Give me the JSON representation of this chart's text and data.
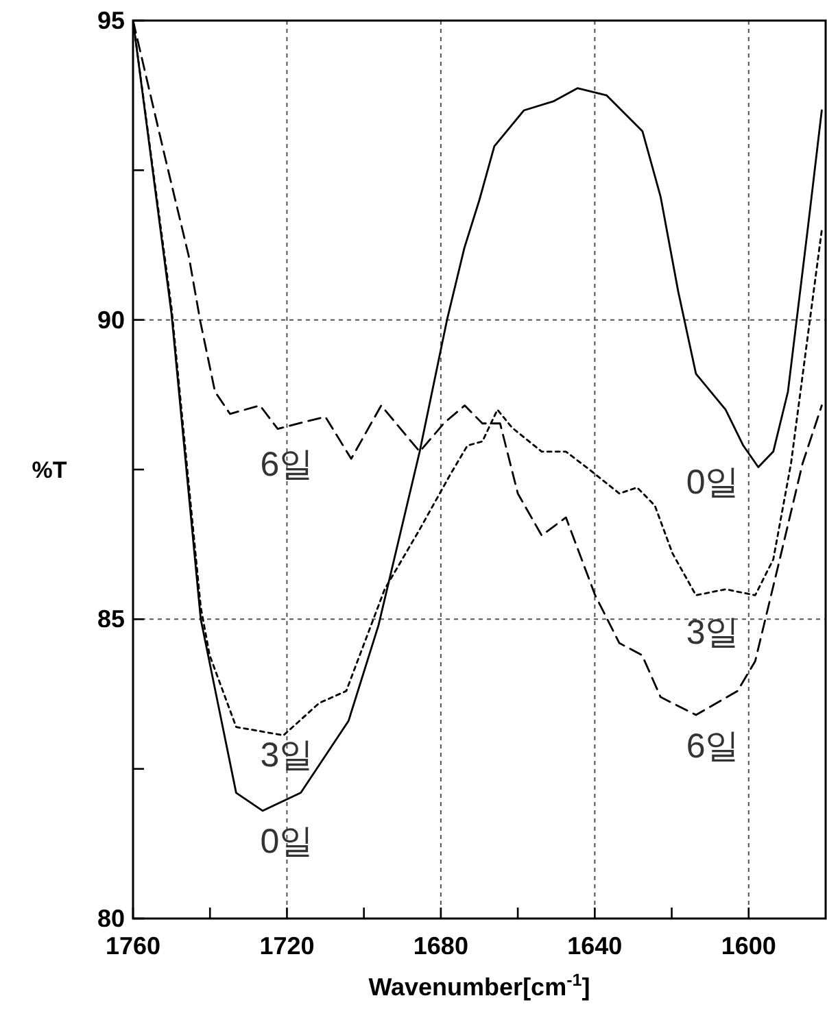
{
  "chart_data": {
    "type": "line",
    "xlabel": "Wavenumber[cm$^{-1}$]",
    "ylabel": "%T",
    "xlim": [
      1760,
      1580
    ],
    "ylim": [
      80,
      95
    ],
    "xticks": [
      1760,
      {
        "value": 1740,
        "label": null
      },
      1720,
      {
        "value": 1700,
        "label": null
      },
      1680,
      {
        "value": 1660,
        "label": null
      },
      1640,
      {
        "value": 1620,
        "label": null
      },
      1600
    ],
    "yticks": [
      80,
      {
        "value": 82.5,
        "label": null
      },
      85,
      {
        "value": 87.5,
        "label": null
      },
      90,
      {
        "value": 92.5,
        "label": null
      },
      95
    ],
    "grid": true,
    "legend": false,
    "marker": "none",
    "series": [
      {
        "name": "0일",
        "color": "#000000",
        "line_style": "solid",
        "x": [
          1760,
          1750,
          1742.4,
          1733.2,
          1726.3,
          1716.4,
          1704,
          1696.2,
          1685.5,
          1678.4,
          1673.9,
          1670,
          1666.1,
          1658.4,
          1650.8,
          1644.5,
          1636.9,
          1627.6,
          1622.9,
          1618.3,
          1613.7,
          1606,
          1601.4,
          1597.5,
          1593.6,
          1589.8,
          1584.5,
          1581
        ],
        "values": [
          95,
          90.1,
          85,
          82.1,
          81.8,
          82.1,
          83.3,
          84.9,
          87.8,
          90,
          91.2,
          92,
          92.9,
          93.5,
          93.65,
          93.87,
          93.75,
          93.15,
          92.06,
          90.47,
          89.1,
          88.5,
          87.9,
          87.54,
          87.8,
          88.8,
          91.6,
          93.5
        ]
      },
      {
        "name": "3일",
        "color": "#000000",
        "line_style": "dotted",
        "x": [
          1760,
          1750,
          1742.4,
          1740.1,
          1733.2,
          1720.9,
          1711.6,
          1704.6,
          1694.6,
          1685.5,
          1677.7,
          1673.1,
          1669.2,
          1665.3,
          1661.5,
          1653.8,
          1647.5,
          1641.4,
          1633.6,
          1629,
          1624.4,
          1619.8,
          1613.7,
          1606,
          1598.3,
          1593.6,
          1589,
          1584.5,
          1581
        ],
        "values": [
          95,
          90.2,
          85.2,
          84.4,
          83.2,
          83.06,
          83.6,
          83.8,
          85.5,
          86.5,
          87.4,
          87.9,
          87.97,
          88.5,
          88.2,
          87.8,
          87.8,
          87.5,
          87.1,
          87.2,
          86.9,
          86.1,
          85.4,
          85.5,
          85.4,
          86,
          87.6,
          89.8,
          91.5
        ]
      },
      {
        "name": "6일",
        "color": "#000000",
        "line_style": "dashed",
        "x": [
          1760,
          1751.8,
          1745.5,
          1742.5,
          1738.7,
          1734.8,
          1727,
          1722.4,
          1716.4,
          1710,
          1703.3,
          1695.5,
          1689.3,
          1685.5,
          1679.1,
          1673.8,
          1669.2,
          1664.6,
          1660,
          1653.8,
          1647.5,
          1639.9,
          1633.6,
          1627.7,
          1622.9,
          1613.7,
          1602.9,
          1598.3,
          1592.3,
          1586,
          1581
        ],
        "values": [
          95,
          92.75,
          91.06,
          89.97,
          88.8,
          88.43,
          88.57,
          88.18,
          88.28,
          88.38,
          87.68,
          88.57,
          88.09,
          87.8,
          88.28,
          88.57,
          88.27,
          88.27,
          87.1,
          86.4,
          86.7,
          85.4,
          84.6,
          84.4,
          83.7,
          83.4,
          83.8,
          84.3,
          85.9,
          87.6,
          88.57
        ]
      }
    ]
  }
}
